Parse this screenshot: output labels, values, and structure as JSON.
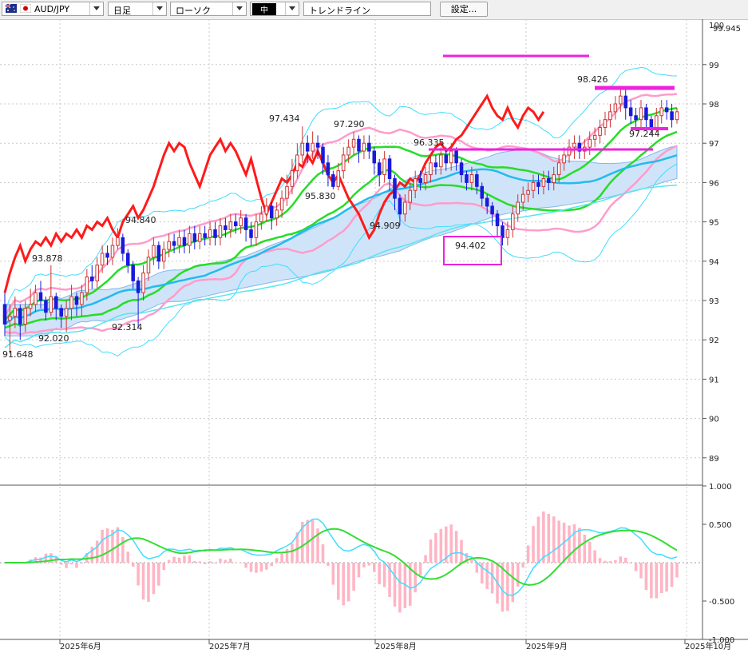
{
  "toolbar": {
    "symbol": "AUD/JPY",
    "timeframe": "日足",
    "chart_style": "ローソク",
    "color_mode": "中",
    "tool": "トレンドライン",
    "settings_label": "設定..."
  },
  "icons": {
    "au_flag": "australia-flag-icon",
    "jp_flag": "japan-flag-icon",
    "dropdown": "chevron-down-icon"
  },
  "colors": {
    "background": "#ffffff",
    "grid": "#c8c8c8",
    "bull_candle": "#cc3333",
    "bear_candle": "#1a1adb",
    "cloud": "#cfe4f8",
    "cloud_edge": "#7fb8ee",
    "cloud_bear": "#f6c6d8",
    "lagging_span": "#ff1a1a",
    "ma_green": "#26dd26",
    "bb_cyan": "#40ddff",
    "bb_pink": "#ff9ccc",
    "trendline_magenta": "#ee22dd",
    "macd_line": "#40ddff",
    "signal_line": "#33dd33",
    "histogram": "#ffb4c4"
  },
  "chart_data": {
    "type": "candlestick",
    "title": "",
    "dates": [
      "2025年6月",
      "2025年7月",
      "2025年8月",
      "2025年9月",
      "2025年10月"
    ],
    "y_axis_ticks": [
      "99",
      "98",
      "97",
      "96",
      "95",
      "94",
      "93",
      "92",
      "91",
      "90",
      "89"
    ],
    "y_top_labels": [
      "100",
      "99.945"
    ],
    "ylim": [
      88.5,
      100.2
    ],
    "annotations": [
      "91.648",
      "93.878",
      "92.020",
      "94.840",
      "92.314",
      "97.434",
      "95.830",
      "97.290",
      "94.909",
      "96.335",
      "94.402",
      "98.426",
      "97.244"
    ],
    "candles": [
      [
        92.9,
        92.4,
        93.2,
        92.1
      ],
      [
        92.5,
        92.6,
        92.9,
        91.65
      ],
      [
        92.6,
        92.8,
        93.1,
        92.3
      ],
      [
        92.8,
        92.4,
        92.9,
        92.0
      ],
      [
        92.4,
        92.8,
        93.0,
        92.2
      ],
      [
        92.8,
        92.9,
        93.3,
        92.6
      ],
      [
        92.9,
        93.2,
        93.4,
        92.7
      ],
      [
        93.2,
        93.0,
        93.5,
        92.8
      ],
      [
        93.0,
        92.7,
        93.1,
        92.5
      ],
      [
        92.7,
        93.1,
        93.9,
        92.6
      ],
      [
        93.1,
        92.8,
        93.2,
        92.5
      ],
      [
        92.8,
        92.6,
        92.9,
        92.3
      ],
      [
        92.6,
        92.8,
        93.0,
        92.2
      ],
      [
        92.8,
        93.1,
        93.4,
        92.5
      ],
      [
        93.1,
        92.9,
        93.2,
        92.6
      ],
      [
        92.9,
        93.2,
        93.4,
        92.6
      ],
      [
        93.2,
        93.6,
        93.8,
        93.0
      ],
      [
        93.6,
        93.5,
        93.9,
        93.3
      ],
      [
        93.5,
        93.9,
        94.1,
        93.3
      ],
      [
        93.9,
        94.2,
        94.4,
        93.7
      ],
      [
        94.2,
        94.1,
        94.4,
        93.9
      ],
      [
        94.1,
        94.4,
        94.6,
        93.9
      ],
      [
        94.4,
        94.6,
        94.84,
        94.3
      ],
      [
        94.6,
        94.2,
        94.7,
        94.0
      ],
      [
        94.2,
        93.9,
        94.3,
        93.7
      ],
      [
        93.9,
        93.5,
        94.0,
        93.3
      ],
      [
        93.5,
        93.2,
        93.6,
        92.31
      ],
      [
        93.2,
        93.7,
        93.9,
        93.0
      ],
      [
        93.7,
        94.1,
        94.3,
        93.5
      ],
      [
        94.1,
        94.4,
        94.6,
        93.9
      ],
      [
        94.4,
        94.0,
        94.5,
        93.8
      ],
      [
        94.0,
        94.3,
        94.5,
        93.8
      ],
      [
        94.3,
        94.5,
        94.7,
        94.1
      ],
      [
        94.5,
        94.4,
        94.7,
        94.2
      ],
      [
        94.4,
        94.6,
        94.8,
        94.2
      ],
      [
        94.6,
        94.4,
        94.8,
        94.2
      ],
      [
        94.4,
        94.7,
        94.9,
        94.2
      ],
      [
        94.7,
        94.5,
        94.9,
        94.3
      ],
      [
        94.5,
        94.7,
        94.9,
        94.3
      ],
      [
        94.7,
        94.6,
        94.9,
        94.4
      ],
      [
        94.6,
        94.8,
        95.0,
        94.4
      ],
      [
        94.8,
        94.6,
        95.0,
        94.4
      ],
      [
        94.6,
        94.9,
        95.1,
        94.4
      ],
      [
        94.9,
        94.8,
        95.1,
        94.6
      ],
      [
        94.8,
        95.0,
        95.2,
        94.6
      ],
      [
        95.0,
        94.9,
        95.2,
        94.7
      ],
      [
        94.9,
        95.1,
        95.3,
        94.7
      ],
      [
        95.1,
        94.8,
        95.2,
        94.5
      ],
      [
        94.8,
        94.6,
        95.0,
        94.4
      ],
      [
        94.6,
        95.0,
        95.2,
        94.4
      ],
      [
        95.0,
        95.2,
        95.4,
        94.8
      ],
      [
        95.2,
        95.4,
        95.6,
        95.0
      ],
      [
        95.4,
        95.1,
        95.5,
        94.8
      ],
      [
        95.1,
        95.3,
        95.5,
        94.9
      ],
      [
        95.3,
        95.6,
        95.8,
        95.1
      ],
      [
        95.6,
        95.9,
        96.2,
        95.4
      ],
      [
        95.9,
        96.3,
        96.6,
        95.7
      ],
      [
        96.3,
        96.7,
        97.0,
        96.1
      ],
      [
        96.7,
        97.0,
        97.43,
        96.5
      ],
      [
        97.0,
        96.8,
        97.2,
        96.5
      ],
      [
        96.8,
        97.0,
        97.3,
        96.6
      ],
      [
        97.0,
        96.9,
        97.2,
        96.6
      ],
      [
        96.9,
        96.5,
        97.0,
        96.2
      ],
      [
        96.5,
        96.2,
        96.7,
        95.9
      ],
      [
        96.2,
        95.9,
        96.3,
        95.83
      ],
      [
        95.9,
        96.3,
        96.5,
        95.8
      ],
      [
        96.3,
        96.7,
        96.9,
        96.1
      ],
      [
        96.7,
        96.9,
        97.1,
        96.5
      ],
      [
        96.9,
        97.1,
        97.29,
        96.7
      ],
      [
        97.1,
        96.8,
        97.2,
        96.5
      ],
      [
        96.8,
        97.0,
        97.2,
        96.6
      ],
      [
        97.0,
        96.8,
        97.2,
        96.6
      ],
      [
        96.8,
        96.5,
        96.9,
        96.2
      ],
      [
        96.5,
        96.2,
        96.6,
        95.9
      ],
      [
        96.2,
        96.6,
        96.8,
        96.0
      ],
      [
        96.6,
        96.1,
        96.7,
        95.8
      ],
      [
        96.1,
        95.6,
        96.2,
        95.3
      ],
      [
        95.6,
        95.2,
        95.7,
        94.91
      ],
      [
        95.2,
        95.5,
        95.7,
        95.0
      ],
      [
        95.5,
        95.8,
        96.0,
        95.3
      ],
      [
        95.8,
        96.1,
        96.3,
        95.6
      ],
      [
        96.1,
        96.0,
        96.3,
        95.8
      ],
      [
        96.0,
        96.2,
        96.4,
        95.8
      ],
      [
        96.2,
        96.5,
        96.7,
        96.0
      ],
      [
        96.5,
        96.4,
        96.7,
        96.2
      ],
      [
        96.4,
        96.7,
        96.9,
        96.2
      ],
      [
        96.7,
        96.5,
        96.9,
        96.3
      ],
      [
        96.5,
        96.8,
        97.0,
        96.3
      ],
      [
        96.8,
        96.5,
        96.9,
        96.3
      ],
      [
        96.5,
        96.2,
        96.6,
        96.0
      ],
      [
        96.2,
        96.0,
        96.3,
        95.8
      ],
      [
        96.0,
        96.2,
        96.4,
        95.8
      ],
      [
        96.2,
        95.9,
        96.3,
        95.7
      ],
      [
        95.9,
        95.6,
        96.0,
        95.4
      ],
      [
        95.6,
        95.4,
        95.7,
        95.2
      ],
      [
        95.4,
        95.2,
        95.5,
        94.9
      ],
      [
        95.2,
        94.9,
        95.3,
        94.6
      ],
      [
        94.9,
        94.6,
        95.0,
        94.4
      ],
      [
        94.6,
        94.8,
        95.0,
        94.4
      ],
      [
        94.8,
        95.2,
        95.4,
        94.6
      ],
      [
        95.2,
        95.5,
        95.7,
        95.0
      ],
      [
        95.5,
        95.7,
        95.9,
        95.3
      ],
      [
        95.7,
        95.8,
        96.0,
        95.5
      ],
      [
        95.8,
        96.0,
        96.2,
        95.6
      ],
      [
        96.0,
        95.9,
        96.2,
        95.7
      ],
      [
        95.9,
        96.1,
        96.3,
        95.7
      ],
      [
        96.1,
        96.0,
        96.3,
        95.8
      ],
      [
        96.0,
        96.2,
        96.4,
        95.8
      ],
      [
        96.2,
        96.5,
        96.7,
        96.0
      ],
      [
        96.5,
        96.7,
        96.9,
        96.3
      ],
      [
        96.7,
        96.9,
        97.1,
        96.5
      ],
      [
        96.9,
        97.0,
        97.2,
        96.6
      ],
      [
        97.0,
        96.8,
        97.2,
        96.6
      ],
      [
        96.8,
        96.9,
        97.1,
        96.6
      ],
      [
        96.9,
        97.1,
        97.3,
        96.7
      ],
      [
        97.1,
        97.2,
        97.4,
        96.9
      ],
      [
        97.2,
        97.4,
        97.6,
        97.0
      ],
      [
        97.4,
        97.6,
        97.8,
        97.2
      ],
      [
        97.6,
        97.8,
        98.0,
        97.4
      ],
      [
        97.8,
        98.0,
        98.2,
        97.6
      ],
      [
        98.0,
        98.2,
        98.43,
        97.8
      ],
      [
        98.2,
        97.9,
        98.4,
        97.6
      ],
      [
        97.9,
        97.7,
        98.1,
        97.5
      ],
      [
        97.7,
        97.6,
        97.9,
        97.4
      ],
      [
        97.6,
        97.9,
        98.1,
        97.4
      ],
      [
        97.9,
        97.6,
        98.0,
        97.4
      ],
      [
        97.6,
        97.4,
        97.7,
        97.24
      ],
      [
        97.4,
        97.7,
        97.9,
        97.3
      ],
      [
        97.7,
        97.9,
        98.1,
        97.5
      ],
      [
        97.9,
        97.8,
        98.1,
        97.6
      ],
      [
        97.8,
        97.6,
        98.0,
        97.4
      ],
      [
        97.6,
        97.8,
        97.9,
        97.5
      ]
    ],
    "oscillator": {
      "y_ticks": [
        "1.000",
        "0.500",
        "-0.500",
        "-1.000"
      ],
      "ylim": [
        -1.0,
        1.0
      ]
    }
  }
}
